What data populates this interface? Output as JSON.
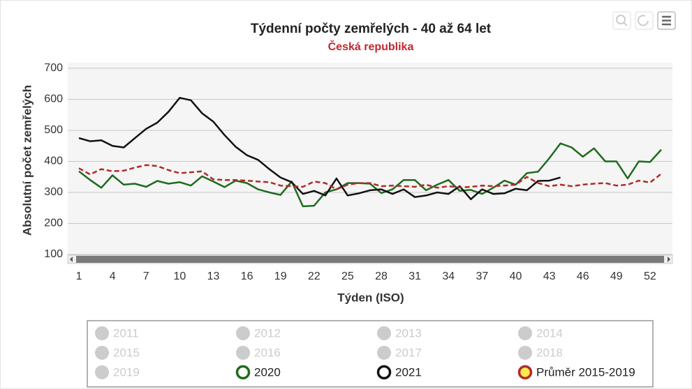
{
  "chart_data": {
    "type": "line",
    "title": "Týdenní počty zemřelých - 40 až 64 let",
    "subtitle": "Česká republika",
    "y_label": "Absolutní počet zemřelých",
    "x_label": "Týden (ISO)",
    "x": [
      1,
      2,
      3,
      4,
      5,
      6,
      7,
      8,
      9,
      10,
      11,
      12,
      13,
      14,
      15,
      16,
      17,
      18,
      19,
      20,
      21,
      22,
      23,
      24,
      25,
      26,
      27,
      28,
      29,
      30,
      31,
      32,
      33,
      34,
      35,
      36,
      37,
      38,
      39,
      40,
      41,
      42,
      43,
      44,
      45,
      46,
      47,
      48,
      49,
      50,
      51,
      52,
      53
    ],
    "xlim": [
      0,
      54
    ],
    "xticks": [
      1,
      4,
      7,
      10,
      13,
      16,
      19,
      22,
      25,
      28,
      31,
      34,
      37,
      40,
      43,
      46,
      49,
      52
    ],
    "ylim": [
      100,
      700
    ],
    "yticks": [
      100,
      200,
      300,
      400,
      500,
      600,
      700
    ],
    "grid": true,
    "hidden_series": [
      "2011",
      "2012",
      "2013",
      "2014",
      "2015",
      "2016",
      "2017",
      "2018",
      "2019"
    ],
    "series": [
      {
        "name": "2020",
        "color": "#1e6b1e",
        "values": [
          368,
          340,
          315,
          355,
          325,
          328,
          318,
          337,
          328,
          333,
          322,
          352,
          335,
          317,
          338,
          330,
          310,
          300,
          292,
          335,
          255,
          257,
          300,
          310,
          330,
          330,
          328,
          298,
          310,
          340,
          340,
          307,
          325,
          340,
          305,
          308,
          295,
          315,
          338,
          325,
          362,
          367,
          410,
          458,
          445,
          415,
          442,
          400,
          400,
          345,
          400,
          398,
          438
        ]
      },
      {
        "name": "2021",
        "color": "#111111",
        "values": [
          475,
          465,
          468,
          450,
          445,
          475,
          505,
          525,
          560,
          605,
          597,
          555,
          528,
          485,
          447,
          420,
          405,
          375,
          348,
          333,
          295,
          305,
          290,
          345,
          290,
          297,
          307,
          310,
          295,
          310,
          285,
          290,
          300,
          295,
          320,
          278,
          310,
          295,
          297,
          312,
          307,
          337,
          338,
          348,
          null,
          null,
          null,
          null,
          null,
          null,
          null,
          null,
          null
        ]
      },
      {
        "name": "Průměr 2015-2019",
        "color": "#b22a2a",
        "marker_fill": "#ffe94d",
        "dashed": true,
        "values": [
          378,
          358,
          375,
          368,
          370,
          380,
          388,
          385,
          372,
          362,
          365,
          368,
          342,
          340,
          340,
          338,
          335,
          333,
          322,
          320,
          318,
          335,
          330,
          310,
          325,
          330,
          330,
          320,
          322,
          320,
          318,
          325,
          315,
          320,
          316,
          318,
          322,
          320,
          322,
          325,
          350,
          330,
          320,
          325,
          320,
          325,
          328,
          330,
          322,
          325,
          338,
          332,
          360
        ]
      }
    ]
  }
}
